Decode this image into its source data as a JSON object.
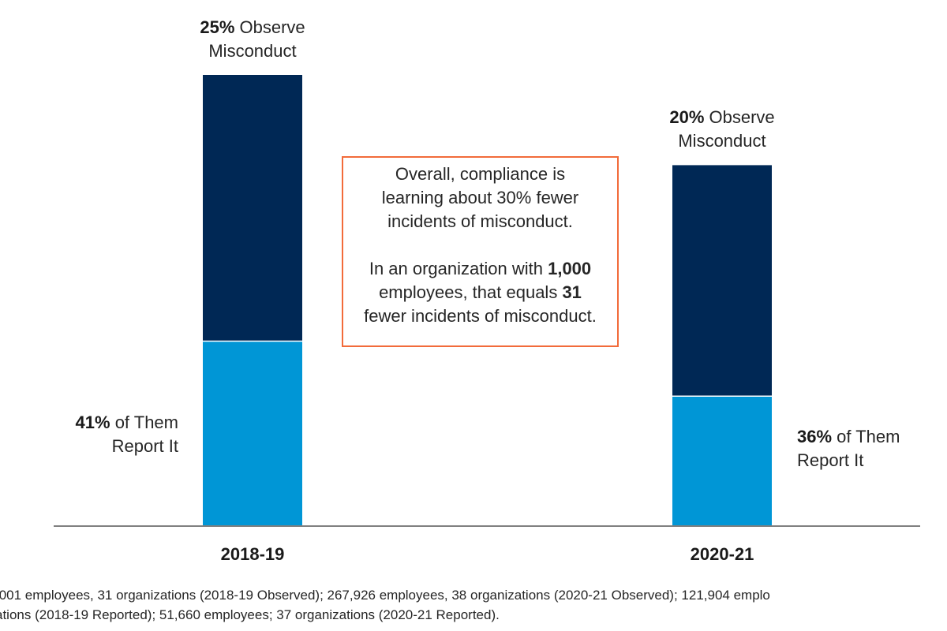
{
  "chart_data": {
    "type": "bar",
    "stacked": true,
    "title": "",
    "xlabel": "",
    "ylabel": "",
    "categories": [
      "2018-19",
      "2020-21"
    ],
    "series": [
      {
        "name": "Observe Misconduct",
        "values": [
          25,
          20
        ],
        "unit": "% of employees",
        "color": "#002855"
      },
      {
        "name": "Report It (share of those who observe)",
        "values": [
          41,
          36
        ],
        "unit": "% of observers",
        "color": "#0096d6"
      }
    ],
    "ylim": [
      0,
      25
    ],
    "grid": false,
    "legend": "none",
    "annotations": {
      "observed": [
        {
          "bold": "25%",
          "text": " Observe",
          "line2": "Misconduct"
        },
        {
          "bold": "20%",
          "text": " Observe",
          "line2": "Misconduct"
        }
      ],
      "reported": [
        {
          "bold": "41%",
          "text": " of Them",
          "line2": "Report It"
        },
        {
          "bold": "36%",
          "text": " of Them",
          "line2": "Report It"
        }
      ],
      "callout": {
        "line1": "Overall, compliance is",
        "line2": "learning about 30% fewer",
        "line3": "incidents of misconduct.",
        "line4_pre": "In an organization with ",
        "line4_bold": "1,000",
        "line5_pre": "employees, that equals ",
        "line5_bold": "31",
        "line6": "fewer incidents of misconduct."
      }
    }
  },
  "footnote": {
    "line1": ",001 employees, 31 organizations (2018-19 Observed); 267,926 employees, 38 organizations (2020-21 Observed); 121,904 emplo",
    "line2": "ations (2018-19 Reported); 51,660 employees; 37 organizations (2020-21 Reported)."
  },
  "colors": {
    "observe": "#002855",
    "report": "#0096d6",
    "axis": "#7f7f7f",
    "callout_border": "#f26b3a"
  }
}
